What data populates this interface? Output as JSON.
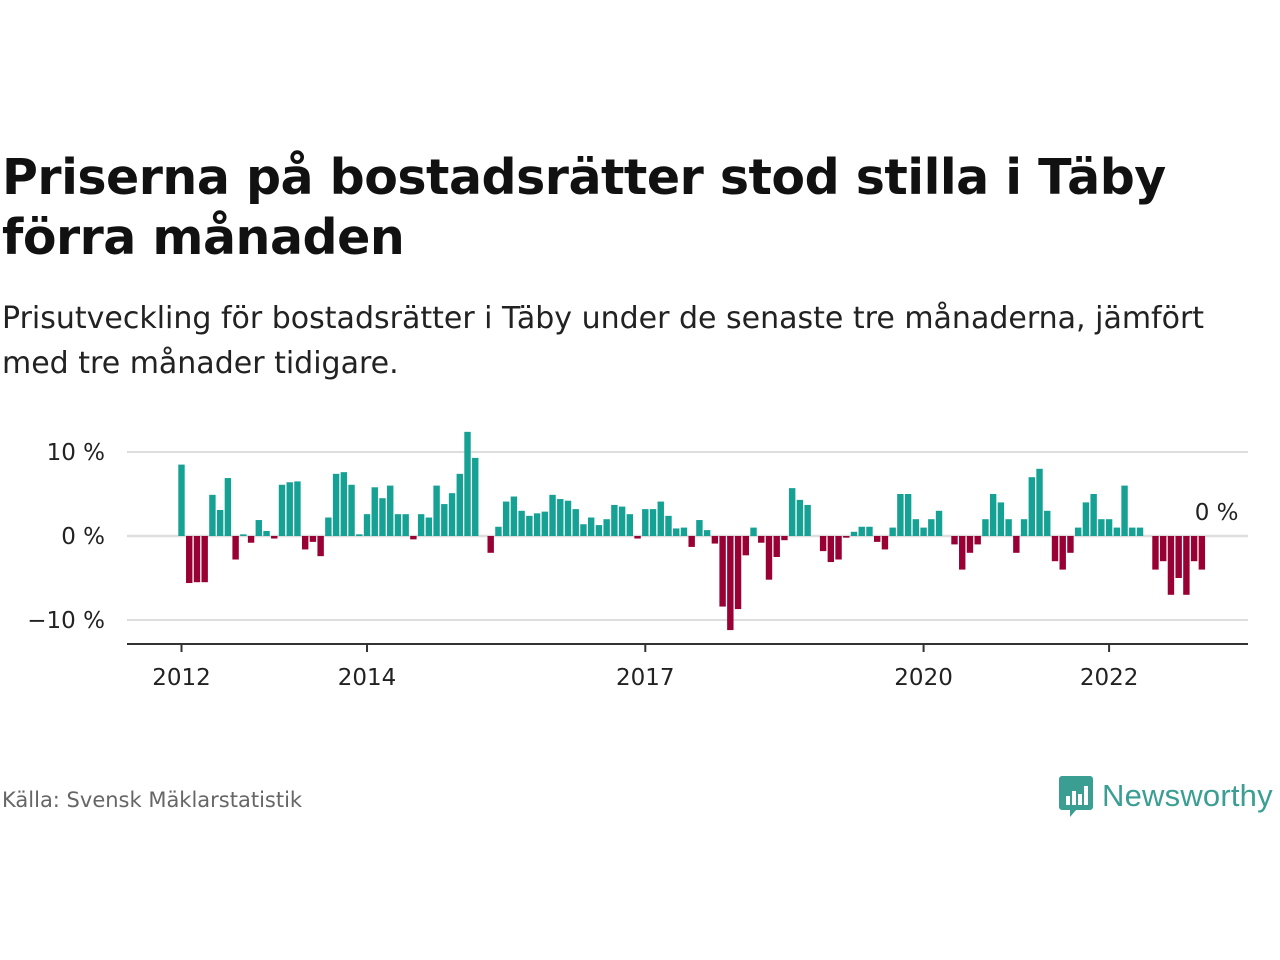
{
  "title": "Priserna på bostadsrätter stod stilla i Täby förra månaden",
  "subtitle": "Prisutveckling för bostadsrätter i Täby under de senaste tre månaderna, jämfört med tre månader tidigare.",
  "source": "Källa: Svensk Mäklarstatistik",
  "brand": {
    "name": "Newsworthy",
    "color": "#3a9e93",
    "icon": "newsworthy-bar-chart-icon"
  },
  "colors": {
    "positive": "#16a195",
    "negative": "#990033",
    "grid": "#dddddd",
    "axis": "#333333"
  },
  "chart_data": {
    "type": "bar",
    "unit": "%",
    "ylim": [
      -13,
      13
    ],
    "yticks": [
      {
        "value": 10,
        "label": "10 %"
      },
      {
        "value": 0,
        "label": "0 %"
      },
      {
        "value": -10,
        "label": "−10 %"
      }
    ],
    "xticks": [
      {
        "value": 2012,
        "label": "2012"
      },
      {
        "value": 2014,
        "label": "2014"
      },
      {
        "value": 2017,
        "label": "2017"
      },
      {
        "value": 2020,
        "label": "2020"
      },
      {
        "value": 2022,
        "label": "2022"
      }
    ],
    "x_start": "2012-01",
    "values": [
      8.5,
      -5.6,
      -5.5,
      -5.5,
      4.9,
      3.1,
      6.9,
      -2.8,
      0.2,
      -0.8,
      1.9,
      0.6,
      -0.3,
      6.1,
      6.4,
      6.5,
      -1.6,
      -0.7,
      -2.4,
      2.2,
      7.4,
      7.6,
      6.1,
      0.2,
      2.6,
      5.8,
      4.5,
      6.0,
      2.6,
      2.6,
      -0.4,
      2.6,
      2.2,
      6.0,
      3.8,
      5.1,
      7.4,
      12.4,
      9.3,
      0.0,
      -2.0,
      1.1,
      4.1,
      4.7,
      3.0,
      2.4,
      2.7,
      2.9,
      4.9,
      4.4,
      4.2,
      3.2,
      1.4,
      2.2,
      1.3,
      2.0,
      3.7,
      3.5,
      2.6,
      -0.3,
      3.2,
      3.2,
      4.1,
      2.4,
      0.9,
      1.0,
      -1.3,
      1.9,
      0.7,
      -0.9,
      -8.4,
      -11.2,
      -8.7,
      -2.3,
      1.0,
      -0.8,
      -5.2,
      -2.5,
      -0.5,
      5.7,
      4.3,
      3.7,
      0.0,
      -1.8,
      -3.1,
      -2.8,
      -0.2,
      0.5,
      1.1,
      1.1,
      -0.7,
      -1.6,
      1.0,
      5.0,
      5.0,
      2.0,
      1.0,
      2.0,
      3.0,
      0.0,
      -1.0,
      -4.0,
      -2.0,
      -1.0,
      2.0,
      5.0,
      4.0,
      2.0,
      -2.0,
      2.0,
      7.0,
      8.0,
      3.0,
      -3.0,
      -4.0,
      -2.0,
      1.0,
      4.0,
      5.0,
      2.0,
      2.0,
      1.0,
      6.0,
      1.0,
      1.0,
      0.0,
      -4.0,
      -3.0,
      -7.0,
      -5.0,
      -7.0,
      -3.0,
      -4.0,
      0.0
    ],
    "annotation": {
      "label": "0 %"
    }
  }
}
